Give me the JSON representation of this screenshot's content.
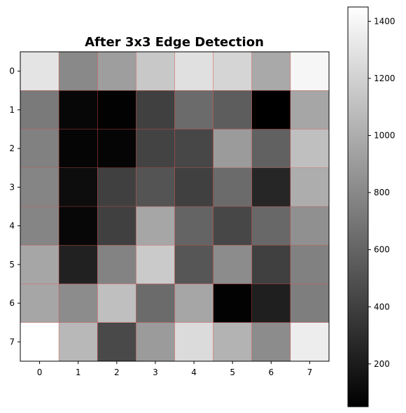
{
  "chart_data": {
    "type": "heatmap",
    "title": "After 3x3 Edge Detection",
    "x_ticks": [
      "0",
      "1",
      "2",
      "3",
      "4",
      "5",
      "6",
      "7"
    ],
    "y_ticks": [
      "0",
      "1",
      "2",
      "3",
      "4",
      "5",
      "6",
      "7"
    ],
    "values": [
      [
        1300,
        800,
        920,
        1150,
        1280,
        1220,
        980,
        1400
      ],
      [
        720,
        90,
        60,
        400,
        640,
        560,
        50,
        960
      ],
      [
        760,
        80,
        80,
        420,
        440,
        900,
        580,
        1100
      ],
      [
        780,
        120,
        400,
        510,
        400,
        640,
        260,
        1000
      ],
      [
        780,
        90,
        400,
        960,
        600,
        440,
        620,
        840
      ],
      [
        960,
        230,
        770,
        1160,
        520,
        820,
        400,
        760
      ],
      [
        960,
        820,
        1100,
        640,
        960,
        60,
        220,
        740
      ],
      [
        1450,
        1060,
        450,
        900,
        1250,
        1030,
        820,
        1350
      ]
    ],
    "colormap": "gray",
    "vmin": 50,
    "vmax": 1450,
    "colorbar_ticks": [
      "200",
      "400",
      "600",
      "800",
      "1000",
      "1200",
      "1400"
    ],
    "grid_line_color": "#d9534f",
    "grid": true
  }
}
